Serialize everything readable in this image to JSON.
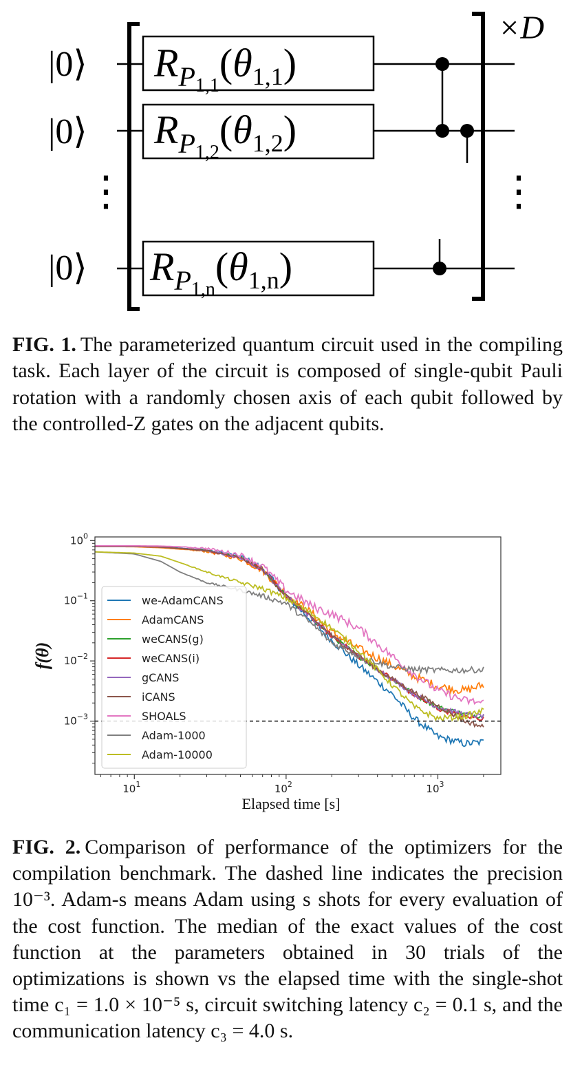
{
  "figure1": {
    "input_state_label": "|0⟩",
    "vertical_dots": "⋮",
    "repeat_label": "×D",
    "gates": [
      {
        "qubit": "1",
        "label_main": "R",
        "label_sub": "P",
        "label_subsub": "1,1",
        "theta": "θ",
        "theta_sub": "1,1"
      },
      {
        "qubit": "2",
        "label_main": "R",
        "label_sub": "P",
        "label_subsub": "1,2",
        "theta": "θ",
        "theta_sub": "1,2"
      },
      {
        "qubit": "n",
        "label_main": "R",
        "label_sub": "P",
        "label_subsub": "1,n",
        "theta": "θ",
        "theta_sub": "1,n"
      }
    ],
    "caption_label": "FIG. 1.",
    "caption_text": "The parameterized quantum circuit used in the compiling task. Each layer of the circuit is composed of single-qubit Pauli rotation with a randomly chosen axis of each qubit followed by the controlled-Z gates on the adjacent qubits."
  },
  "figure2": {
    "caption_label": "FIG. 2.",
    "caption_text": "Comparison of performance of the optimizers for the compilation benchmark. The dashed line indicates the precision 10⁻³. Adam-s means Adam using s shots for every evaluation of the cost function. The median of the exact values of the cost function at the parameters obtained in 30 trials of the optimizations is shown vs the elapsed time with the single-shot time c₁ = 1.0 × 10⁻⁵ s, circuit switching latency c₂ = 0.1 s, and the communication latency c₃ = 4.0 s."
  },
  "chart_data": {
    "type": "line",
    "xlabel": "Elapsed time [s]",
    "ylabel": "f(θ)",
    "xscale": "log",
    "yscale": "log",
    "xlim": [
      5.5,
      2600
    ],
    "ylim": [
      0.00013,
      1.15
    ],
    "x_ticks": [
      {
        "value": 10,
        "base": "10",
        "exp": "1"
      },
      {
        "value": 100,
        "base": "10",
        "exp": "2"
      },
      {
        "value": 1000,
        "base": "10",
        "exp": "3"
      }
    ],
    "y_ticks": [
      {
        "value": 1,
        "base": "10",
        "exp": "0"
      },
      {
        "value": 0.1,
        "base": "10",
        "exp": "−1"
      },
      {
        "value": 0.01,
        "base": "10",
        "exp": "−2"
      },
      {
        "value": 0.001,
        "base": "10",
        "exp": "−3"
      }
    ],
    "reference_line": {
      "y": 0.001,
      "style": "dashed",
      "color": "#222222"
    },
    "legend_position": "center-left",
    "grid": false,
    "series": [
      {
        "name": "we-AdamCANS",
        "color": "#1f77b4",
        "noise": 0.06,
        "x": [
          5.5,
          10,
          15,
          20,
          30,
          50,
          70,
          100,
          150,
          200,
          300,
          500,
          700,
          1000,
          1500,
          2000
        ],
        "y": [
          0.8,
          0.8,
          0.79,
          0.75,
          0.7,
          0.55,
          0.35,
          0.12,
          0.045,
          0.022,
          0.0085,
          0.0028,
          0.0011,
          0.00055,
          0.00042,
          0.00045
        ]
      },
      {
        "name": "AdamCANS",
        "color": "#ff7f0e",
        "noise": 0.07,
        "x": [
          5.5,
          10,
          15,
          20,
          30,
          50,
          70,
          100,
          150,
          200,
          300,
          500,
          700,
          1000,
          1500,
          2000
        ],
        "y": [
          0.8,
          0.79,
          0.76,
          0.72,
          0.66,
          0.5,
          0.32,
          0.13,
          0.06,
          0.03,
          0.016,
          0.0085,
          0.0055,
          0.0038,
          0.0032,
          0.004
        ]
      },
      {
        "name": "weCANS(g)",
        "color": "#2ca02c",
        "noise": 0.04,
        "x": [
          5.5,
          10,
          15,
          20,
          30,
          50,
          70,
          100,
          150,
          200,
          300,
          500,
          700,
          1000,
          1500,
          2000
        ],
        "y": [
          0.8,
          0.8,
          0.78,
          0.74,
          0.68,
          0.52,
          0.33,
          0.12,
          0.05,
          0.026,
          0.012,
          0.005,
          0.0028,
          0.0017,
          0.0013,
          0.0012
        ]
      },
      {
        "name": "weCANS(i)",
        "color": "#d62728",
        "noise": 0.04,
        "x": [
          5.5,
          10,
          15,
          20,
          30,
          50,
          70,
          100,
          150,
          200,
          300,
          500,
          700,
          1000,
          1500,
          2000
        ],
        "y": [
          0.8,
          0.8,
          0.78,
          0.74,
          0.68,
          0.52,
          0.33,
          0.12,
          0.05,
          0.026,
          0.012,
          0.005,
          0.0027,
          0.0016,
          0.0012,
          0.0011
        ]
      },
      {
        "name": "gCANS",
        "color": "#9467bd",
        "noise": 0.04,
        "x": [
          5.5,
          10,
          15,
          20,
          30,
          50,
          70,
          100,
          150,
          200,
          300,
          500,
          700,
          1000,
          1500,
          2000
        ],
        "y": [
          0.8,
          0.8,
          0.78,
          0.74,
          0.68,
          0.52,
          0.33,
          0.12,
          0.05,
          0.026,
          0.012,
          0.005,
          0.0028,
          0.0017,
          0.0013,
          0.0012
        ]
      },
      {
        "name": "iCANS",
        "color": "#8c564b",
        "noise": 0.04,
        "x": [
          5.5,
          10,
          15,
          20,
          30,
          50,
          70,
          100,
          150,
          200,
          300,
          500,
          700,
          1000,
          1500,
          2000
        ],
        "y": [
          0.8,
          0.8,
          0.78,
          0.74,
          0.68,
          0.52,
          0.33,
          0.12,
          0.05,
          0.026,
          0.012,
          0.005,
          0.003,
          0.0018,
          0.001,
          0.0008
        ]
      },
      {
        "name": "SHOALS",
        "color": "#e377c2",
        "noise": 0.07,
        "x": [
          5.5,
          10,
          15,
          20,
          30,
          50,
          70,
          100,
          150,
          200,
          300,
          500,
          700,
          1000,
          1500,
          2000
        ],
        "y": [
          0.82,
          0.82,
          0.81,
          0.79,
          0.74,
          0.58,
          0.38,
          0.15,
          0.08,
          0.06,
          0.035,
          0.012,
          0.006,
          0.0032,
          0.0022,
          0.002
        ]
      },
      {
        "name": "Adam-1000",
        "color": "#7f7f7f",
        "noise": 0.05,
        "x": [
          5.5,
          10,
          15,
          20,
          30,
          50,
          70,
          100,
          150,
          200,
          300,
          500,
          700,
          1000,
          1500,
          2000
        ],
        "y": [
          0.65,
          0.6,
          0.45,
          0.3,
          0.2,
          0.15,
          0.12,
          0.09,
          0.04,
          0.02,
          0.012,
          0.008,
          0.0072,
          0.007,
          0.007,
          0.0072
        ]
      },
      {
        "name": "Adam-10000",
        "color": "#bcbd22",
        "noise": 0.05,
        "x": [
          5.5,
          10,
          15,
          20,
          30,
          50,
          70,
          100,
          150,
          200,
          300,
          500,
          700,
          1000,
          1500,
          2000
        ],
        "y": [
          0.65,
          0.62,
          0.55,
          0.43,
          0.3,
          0.2,
          0.16,
          0.11,
          0.06,
          0.035,
          0.015,
          0.004,
          0.0017,
          0.0011,
          0.0012,
          0.0015
        ]
      }
    ]
  }
}
